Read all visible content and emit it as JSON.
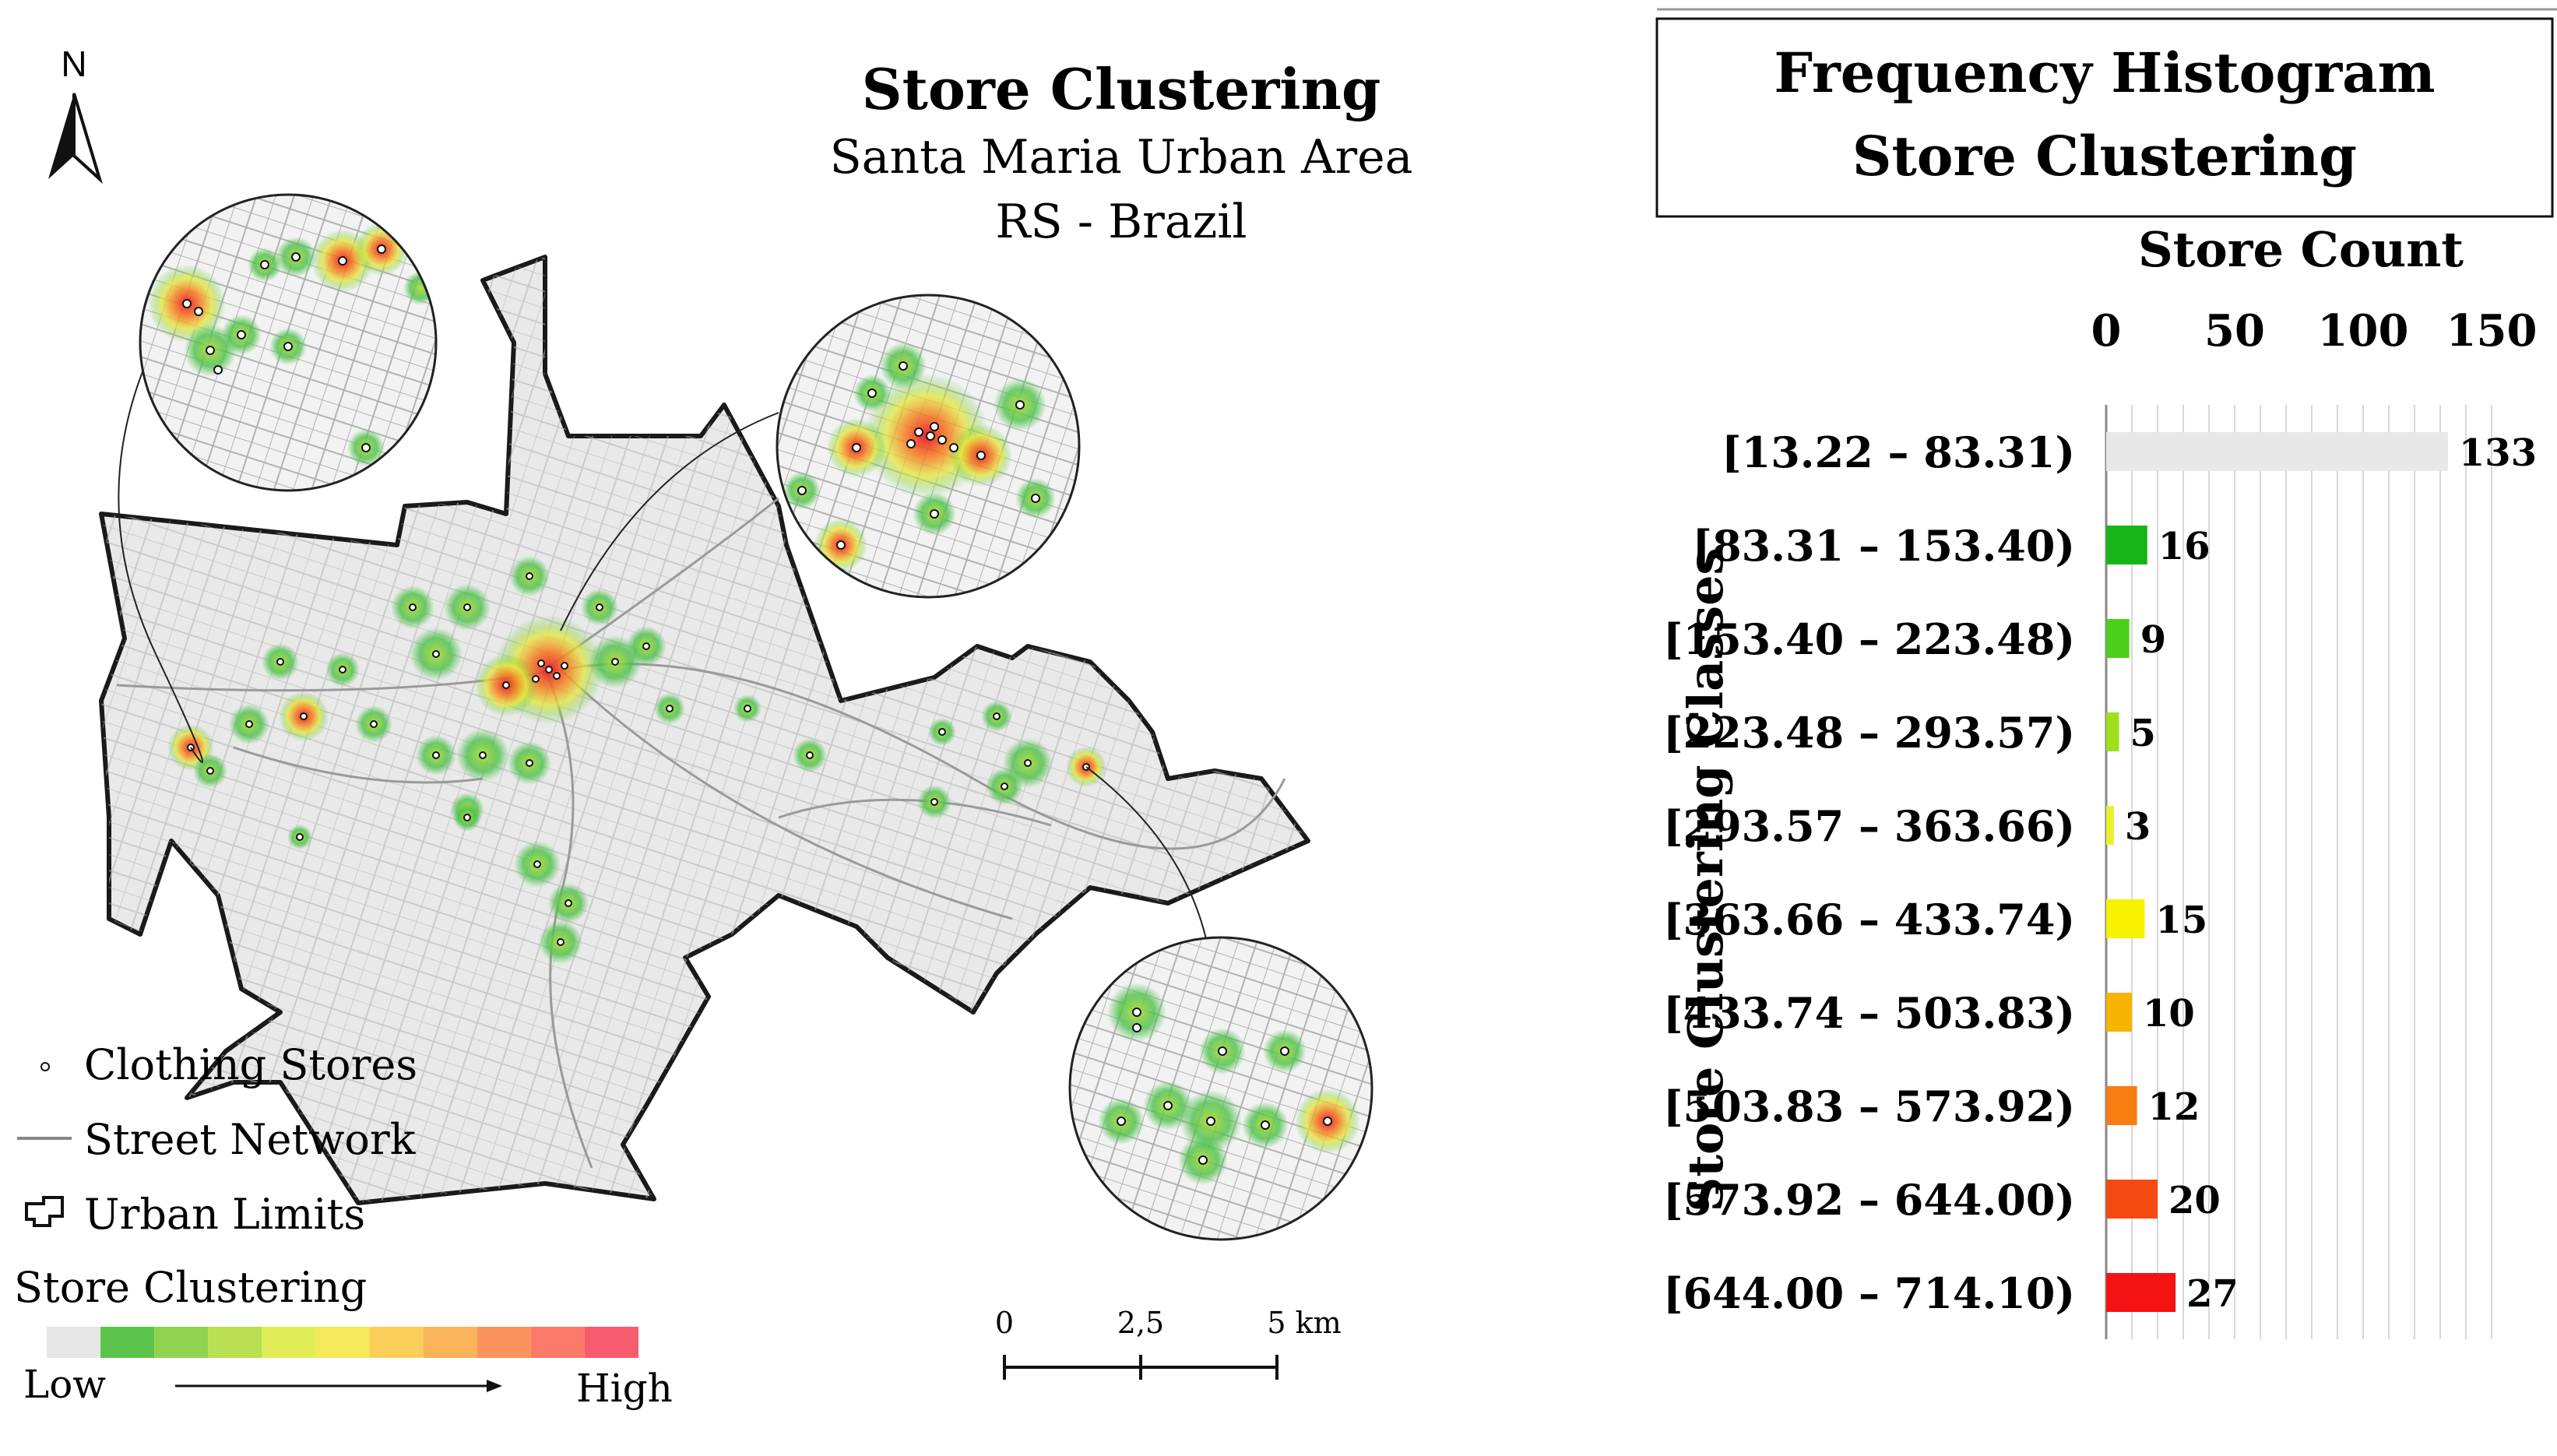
{
  "map": {
    "title": "Store Clustering",
    "subtitle_1": "Santa Maria Urban Area",
    "subtitle_2": "RS - Brazil",
    "north_label": "N",
    "legend": {
      "stores": "Clothing Stores",
      "streets": "Street Network",
      "limits": "Urban Limits",
      "ramp_title": "Store Clustering",
      "low": "Low",
      "high": "High",
      "ramp_colors": [
        "#e6e6e6",
        "#5cc34a",
        "#8fd34f",
        "#b9df52",
        "#e0ec55",
        "#f5e85a",
        "#fbcf5a",
        "#fbb35a",
        "#fb945c",
        "#fb7a6a",
        "#f75c6e"
      ]
    },
    "scale": {
      "labels": [
        "0",
        "2,5",
        "5 km"
      ]
    },
    "colors": {
      "urban_fill": "#e9e9e9",
      "street": "#a9a9a9",
      "outline": "#1a1a1a"
    }
  },
  "histogram": {
    "title_1": "Frequency Histogram",
    "title_2": "Store Clustering",
    "x_label": "Store Count",
    "y_label": "Store Clustering Classes"
  },
  "chart_data": {
    "type": "bar",
    "orientation": "horizontal",
    "xlim": [
      0,
      150
    ],
    "xticks": [
      0,
      50,
      100,
      150
    ],
    "categories": [
      "[13.22 – 83.31)",
      "[83.31 – 153.40)",
      "[153.40 – 223.48)",
      "[223.48 – 293.57)",
      "[293.57 – 363.66)",
      "[363.66 – 433.74)",
      "[433.74 – 503.83)",
      "[503.83 – 573.92)",
      "[573.92 – 644.00)",
      "[644.00 – 714.10)"
    ],
    "values": [
      133,
      16,
      9,
      5,
      3,
      15,
      10,
      12,
      20,
      27
    ],
    "colors": [
      "#e8e8e8",
      "#17b515",
      "#4ccf1a",
      "#9fe01c",
      "#e8f22a",
      "#f7f200",
      "#f6b400",
      "#f77e10",
      "#f54a12",
      "#f51212"
    ],
    "grid": true
  }
}
